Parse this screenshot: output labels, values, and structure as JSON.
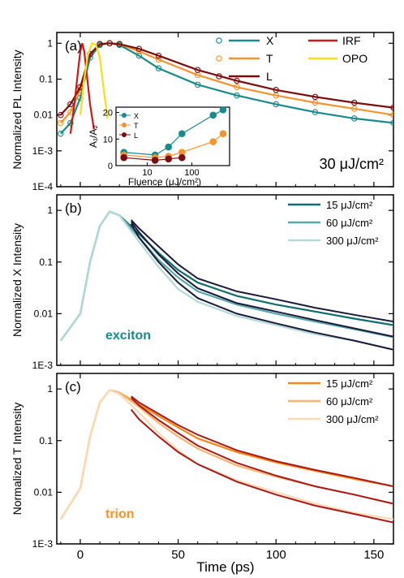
{
  "figure": {
    "x_axis_label": "Time (ps)",
    "x_ticks": [
      "0",
      "50",
      "100",
      "150"
    ]
  },
  "chart_data": [
    {
      "type": "scatter",
      "panel_label": "(a)",
      "ylabel": "Normalized PL Intensity",
      "xlabel": "Time (ps)",
      "xlim": [
        -12,
        160
      ],
      "ylim": [
        0.0001,
        2
      ],
      "yscale": "log",
      "y_ticks": [
        "1E-4",
        "1E-3",
        "0.01",
        "0.1",
        "1"
      ],
      "annotation": "30 μJ/cm²",
      "legend": [
        {
          "name": "X",
          "color": "#1a8a8a",
          "marker": "circle+line"
        },
        {
          "name": "T",
          "color": "#f39430",
          "marker": "circle+line"
        },
        {
          "name": "L",
          "color": "#7a0e0e",
          "marker": "circle+line"
        },
        {
          "name": "IRF",
          "color": "#cc1a1a",
          "marker": "line"
        },
        {
          "name": "OPO",
          "color": "#f5e01a",
          "marker": "line"
        }
      ],
      "series": [
        {
          "name": "X",
          "color": "#1a8a8a",
          "x": [
            -10,
            -5,
            0,
            5,
            10,
            15,
            20,
            30,
            40,
            60,
            80,
            100,
            120,
            140,
            160
          ],
          "y": [
            0.003,
            0.006,
            0.03,
            0.4,
            0.9,
            1.0,
            0.9,
            0.45,
            0.2,
            0.07,
            0.035,
            0.02,
            0.012,
            0.008,
            0.006
          ]
        },
        {
          "name": "T",
          "color": "#f39430",
          "x": [
            -10,
            -5,
            0,
            5,
            10,
            15,
            20,
            30,
            40,
            60,
            80,
            100,
            120,
            140,
            160
          ],
          "y": [
            0.006,
            0.012,
            0.05,
            0.5,
            0.95,
            1.0,
            0.95,
            0.6,
            0.35,
            0.13,
            0.06,
            0.035,
            0.022,
            0.015,
            0.01
          ]
        },
        {
          "name": "L",
          "color": "#7a0e0e",
          "x": [
            -10,
            -5,
            0,
            5,
            10,
            15,
            20,
            30,
            40,
            60,
            80,
            100,
            120,
            140,
            160
          ],
          "y": [
            0.01,
            0.02,
            0.06,
            0.5,
            0.95,
            1.0,
            0.95,
            0.7,
            0.45,
            0.18,
            0.09,
            0.05,
            0.032,
            0.022,
            0.016
          ]
        },
        {
          "name": "IRF",
          "color": "#cc1a1a",
          "x": [
            -5,
            -3,
            -1,
            0,
            1,
            2,
            3,
            5,
            7
          ],
          "y": [
            0.003,
            0.02,
            0.2,
            0.6,
            1.0,
            0.6,
            0.2,
            0.02,
            0.004
          ]
        },
        {
          "name": "OPO",
          "color": "#f5e01a",
          "x": [
            0,
            2,
            4,
            6,
            8,
            10,
            12,
            14
          ],
          "y": [
            0.01,
            0.1,
            0.5,
            1.0,
            0.9,
            0.4,
            0.05,
            0.008
          ]
        }
      ],
      "inset": {
        "type": "scatter",
        "xlabel": "Fluence (μJ/cm²)",
        "ylabel": "A₁/A₂",
        "xscale": "log",
        "xlim": [
          2,
          700
        ],
        "ylim": [
          0,
          22
        ],
        "x_ticks": [
          "10",
          "100"
        ],
        "y_ticks": [
          "0",
          "10",
          "20"
        ],
        "legend": [
          "X",
          "T",
          "L"
        ],
        "series": [
          {
            "name": "X",
            "color": "#1a8a8a",
            "x": [
              3,
              15,
              30,
              60,
              300,
              500
            ],
            "y": [
              5,
              4,
              7,
              12,
              19,
              21
            ]
          },
          {
            "name": "T",
            "color": "#f39430",
            "x": [
              3,
              15,
              30,
              60,
              300,
              500
            ],
            "y": [
              4,
              3,
              3.5,
              5,
              9,
              12
            ]
          },
          {
            "name": "L",
            "color": "#7a0e0e",
            "x": [
              3,
              15,
              30,
              60
            ],
            "y": [
              3,
              2,
              2.5,
              3
            ]
          }
        ]
      }
    },
    {
      "type": "line",
      "panel_label": "(b)",
      "ylabel": "Normalized X Intensity",
      "xlabel": "Time (ps)",
      "xlim": [
        -12,
        160
      ],
      "ylim": [
        0.001,
        2
      ],
      "yscale": "log",
      "y_ticks": [
        "1E-3",
        "0.01",
        "0.1",
        "1"
      ],
      "annotation": "exciton",
      "legend": [
        {
          "name": "15 μJ/cm²",
          "color": "#0e6e6e"
        },
        {
          "name": "60 μJ/cm²",
          "color": "#5aa8a8"
        },
        {
          "name": "300 μJ/cm²",
          "color": "#b5d9d6"
        }
      ],
      "series": [
        {
          "name": "15 μJ/cm²",
          "color": "#0e6e6e",
          "x": [
            -10,
            0,
            5,
            10,
            15,
            20,
            30,
            40,
            50,
            60,
            80,
            100,
            120,
            140,
            160
          ],
          "y": [
            0.003,
            0.01,
            0.1,
            0.5,
            0.95,
            0.8,
            0.35,
            0.15,
            0.07,
            0.04,
            0.022,
            0.015,
            0.011,
            0.008,
            0.006
          ]
        },
        {
          "name": "60 μJ/cm²",
          "color": "#5aa8a8",
          "x": [
            -10,
            0,
            5,
            10,
            15,
            20,
            30,
            40,
            50,
            60,
            80,
            100,
            120,
            140,
            160
          ],
          "y": [
            0.003,
            0.01,
            0.1,
            0.5,
            0.95,
            0.8,
            0.3,
            0.11,
            0.05,
            0.027,
            0.015,
            0.01,
            0.007,
            0.005,
            0.0035
          ]
        },
        {
          "name": "300 μJ/cm²",
          "color": "#b5d9d6",
          "x": [
            -10,
            0,
            5,
            10,
            15,
            20,
            30,
            40,
            50,
            60,
            80,
            100,
            120,
            140,
            160
          ],
          "y": [
            0.003,
            0.01,
            0.1,
            0.5,
            0.95,
            0.8,
            0.25,
            0.08,
            0.03,
            0.017,
            0.009,
            0.006,
            0.004,
            0.003,
            0.002
          ]
        }
      ],
      "fits": [
        {
          "x": [
            26,
            30,
            40,
            50,
            60,
            80,
            100,
            120,
            140,
            160
          ],
          "y": [
            0.65,
            0.45,
            0.2,
            0.09,
            0.048,
            0.027,
            0.019,
            0.013,
            0.0095,
            0.007
          ]
        },
        {
          "x": [
            26,
            30,
            40,
            50,
            60,
            80,
            100,
            120,
            140,
            160
          ],
          "y": [
            0.6,
            0.38,
            0.14,
            0.06,
            0.031,
            0.016,
            0.011,
            0.0075,
            0.0052,
            0.0036
          ]
        },
        {
          "x": [
            26,
            30,
            40,
            50,
            60,
            80,
            100,
            120,
            140,
            160
          ],
          "y": [
            0.55,
            0.3,
            0.1,
            0.04,
            0.02,
            0.01,
            0.0065,
            0.0043,
            0.003,
            0.002
          ]
        }
      ]
    },
    {
      "type": "line",
      "panel_label": "(c)",
      "ylabel": "Normalized T Intensity",
      "xlabel": "Time (ps)",
      "xlim": [
        -12,
        160
      ],
      "ylim": [
        0.001,
        2
      ],
      "yscale": "log",
      "y_ticks": [
        "1E-3",
        "0.01",
        "0.1",
        "1"
      ],
      "annotation": "trion",
      "legend": [
        {
          "name": "15 μJ/cm²",
          "color": "#f28a1a"
        },
        {
          "name": "60 μJ/cm²",
          "color": "#f7b470"
        },
        {
          "name": "300 μJ/cm²",
          "color": "#fbd9b5"
        }
      ],
      "series": [
        {
          "name": "15 μJ/cm²",
          "color": "#f28a1a",
          "x": [
            -10,
            0,
            5,
            10,
            15,
            20,
            30,
            40,
            50,
            60,
            80,
            100,
            120,
            140,
            160
          ],
          "y": [
            0.003,
            0.012,
            0.12,
            0.55,
            0.95,
            0.85,
            0.5,
            0.3,
            0.18,
            0.11,
            0.06,
            0.038,
            0.026,
            0.018,
            0.013
          ]
        },
        {
          "name": "60 μJ/cm²",
          "color": "#f7b470",
          "x": [
            -10,
            0,
            5,
            10,
            15,
            20,
            30,
            40,
            50,
            60,
            80,
            100,
            120,
            140,
            160
          ],
          "y": [
            0.003,
            0.012,
            0.12,
            0.55,
            0.95,
            0.85,
            0.45,
            0.22,
            0.12,
            0.07,
            0.033,
            0.02,
            0.013,
            0.009,
            0.006
          ]
        },
        {
          "name": "300 μJ/cm²",
          "color": "#fbd9b5",
          "x": [
            -10,
            0,
            5,
            10,
            15,
            20,
            30,
            40,
            50,
            60,
            80,
            100,
            120,
            140,
            160
          ],
          "y": [
            0.003,
            0.012,
            0.12,
            0.55,
            0.95,
            0.8,
            0.35,
            0.14,
            0.065,
            0.035,
            0.017,
            0.01,
            0.006,
            0.004,
            0.003
          ]
        }
      ],
      "fits": [
        {
          "x": [
            26,
            30,
            40,
            50,
            60,
            80,
            100,
            120,
            140,
            160
          ],
          "y": [
            0.72,
            0.55,
            0.33,
            0.2,
            0.13,
            0.065,
            0.04,
            0.027,
            0.019,
            0.013
          ]
        },
        {
          "x": [
            26,
            30,
            40,
            50,
            60,
            80,
            100,
            120,
            140,
            160
          ],
          "y": [
            0.68,
            0.48,
            0.25,
            0.14,
            0.08,
            0.037,
            0.021,
            0.013,
            0.009,
            0.006
          ]
        },
        {
          "x": [
            26,
            30,
            40,
            50,
            60,
            80,
            100,
            120,
            140,
            160
          ],
          "y": [
            0.4,
            0.26,
            0.12,
            0.06,
            0.035,
            0.016,
            0.009,
            0.0055,
            0.0038,
            0.0026
          ]
        }
      ]
    }
  ]
}
